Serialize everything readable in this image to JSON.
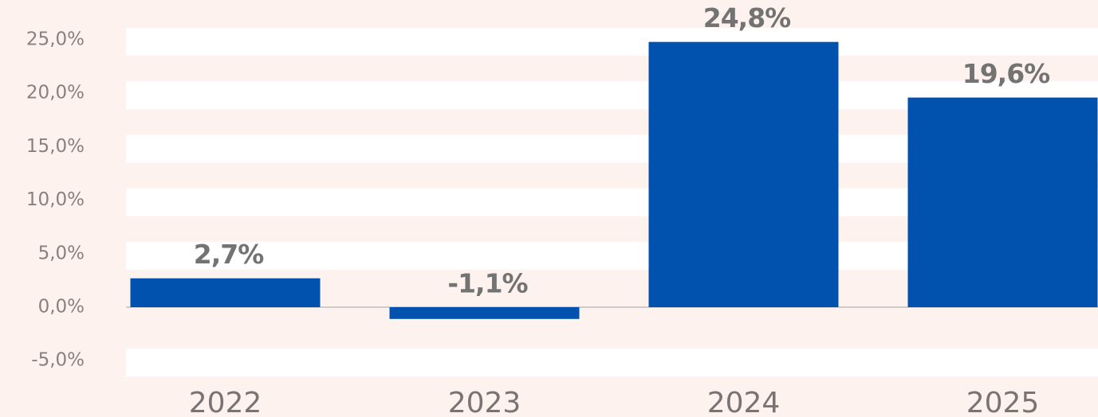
{
  "chart_data": {
    "type": "bar",
    "categories": [
      "2022",
      "2023",
      "2024",
      "2025"
    ],
    "values": [
      2.7,
      -1.1,
      24.8,
      19.6
    ],
    "value_labels": [
      "2,7%",
      "-1,1%",
      "24,8%",
      "19,6%"
    ],
    "color": "#0052ae",
    "ylim": [
      -5,
      25
    ],
    "yticks": [
      {
        "value": -5,
        "label": "-5,0%"
      },
      {
        "value": 0,
        "label": "0,0%"
      },
      {
        "value": 5,
        "label": "5,0%"
      },
      {
        "value": 10,
        "label": "10,0%"
      },
      {
        "value": 15,
        "label": "15,0%"
      },
      {
        "value": 20,
        "label": "20,0%"
      },
      {
        "value": 25,
        "label": "25,0%"
      }
    ],
    "grid": true
  }
}
